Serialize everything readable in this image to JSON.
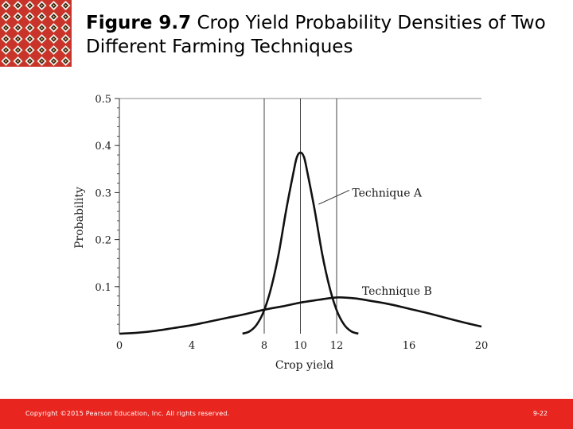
{
  "slide": {
    "title_number": "Figure 9.7",
    "title_rest": " Crop Yield Probability Densities of Two Different Farming Techniques"
  },
  "footer": {
    "copyright": "Copyright ©2015 Pearson Education, Inc. All rights reserved.",
    "page_number": "9-22"
  },
  "colors": {
    "logo_red": "#c9342a",
    "footer_red": "#e8261f",
    "curve": "#111111",
    "axis": "#333333"
  },
  "chart_data": {
    "type": "line",
    "title": "",
    "xlabel": "Crop yield",
    "ylabel": "Probability",
    "xlim": [
      0,
      20
    ],
    "ylim": [
      0,
      0.5
    ],
    "x_ticks": [
      0,
      4,
      8,
      10,
      12,
      16,
      20
    ],
    "y_ticks": [
      0.1,
      0.2,
      0.3,
      0.4,
      0.5
    ],
    "grid": false,
    "reference_lines_x": [
      8,
      10,
      12
    ],
    "series": [
      {
        "name": "Technique A",
        "x": [
          6.8,
          7.2,
          7.6,
          8.0,
          8.4,
          8.8,
          9.2,
          9.6,
          9.8,
          10.0,
          10.2,
          10.4,
          10.8,
          11.2,
          11.6,
          12.0,
          12.4,
          12.8,
          13.2
        ],
        "y": [
          0.0,
          0.005,
          0.02,
          0.05,
          0.1,
          0.17,
          0.26,
          0.34,
          0.375,
          0.385,
          0.375,
          0.34,
          0.26,
          0.17,
          0.1,
          0.05,
          0.02,
          0.005,
          0.0
        ]
      },
      {
        "name": "Technique B",
        "x": [
          0,
          1,
          2,
          3,
          4,
          5,
          6,
          7,
          8,
          9,
          10,
          11,
          12,
          13,
          14,
          15,
          16,
          17,
          18,
          19,
          20
        ],
        "y": [
          0.0,
          0.002,
          0.006,
          0.012,
          0.018,
          0.026,
          0.034,
          0.042,
          0.051,
          0.058,
          0.066,
          0.072,
          0.077,
          0.075,
          0.069,
          0.062,
          0.053,
          0.044,
          0.034,
          0.024,
          0.015
        ]
      }
    ],
    "annotations": [
      {
        "text": "Technique A",
        "target_series": 0
      },
      {
        "text": "Technique B",
        "target_series": 1
      }
    ]
  }
}
